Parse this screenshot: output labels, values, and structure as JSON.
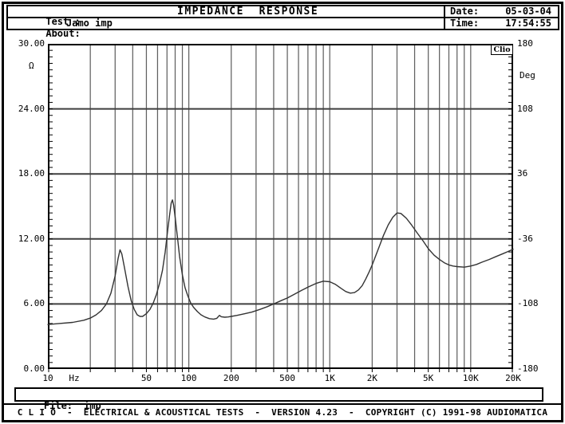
{
  "header": {
    "test_label": "Test :",
    "title": "IMPEDANCE  RESPONSE",
    "about_label": "About:",
    "about_value": "Jamo imp",
    "date_label": "Date:",
    "date_value": "05-03-04",
    "time_label": "Time:",
    "time_value": "17:54:55"
  },
  "file_bar": {
    "label": "File:",
    "value": "imp"
  },
  "footer": {
    "text": "C L I O  -  ELECTRICAL & ACOUSTICAL TESTS  -  VERSION 4.23  -  COPYRIGHT (C) 1991-98 AUDIOMATICA"
  },
  "chart_data": {
    "type": "line",
    "title": "IMPEDANCE RESPONSE",
    "watermark": "Clio",
    "grid": true,
    "colors": {
      "grid_vertical": "#616161",
      "grid_horizontal": "#3f3f3f",
      "axis": "#000000",
      "curve": "#333333",
      "background": "#ffffff"
    },
    "x_axis": {
      "scale": "log",
      "min_hz": 10,
      "max_hz": 20000,
      "unit_label": "Hz",
      "tick_labels": [
        {
          "f": 10,
          "label": "10"
        },
        {
          "f": 50,
          "label": "50"
        },
        {
          "f": 100,
          "label": "100"
        },
        {
          "f": 200,
          "label": "200"
        },
        {
          "f": 500,
          "label": "500"
        },
        {
          "f": 1000,
          "label": "1K"
        },
        {
          "f": 2000,
          "label": "2K"
        },
        {
          "f": 5000,
          "label": "5K"
        },
        {
          "f": 10000,
          "label": "10K"
        },
        {
          "f": 20000,
          "label": "20K"
        }
      ],
      "gridline_freqs": [
        20,
        30,
        40,
        50,
        60,
        70,
        80,
        90,
        100,
        200,
        300,
        400,
        500,
        600,
        700,
        800,
        900,
        1000,
        2000,
        3000,
        4000,
        5000,
        6000,
        7000,
        8000,
        9000,
        10000
      ]
    },
    "y_axis_left": {
      "unit": "Ω",
      "min": 0,
      "max": 30,
      "tick_labels": [
        {
          "v": 30,
          "label": "30.00"
        },
        {
          "v": 24,
          "label": "24.00"
        },
        {
          "v": 18,
          "label": "18.00"
        },
        {
          "v": 12,
          "label": "12.00"
        },
        {
          "v": 6,
          "label": "6.00"
        },
        {
          "v": 0,
          "label": "0.00"
        }
      ],
      "gridline_values": [
        24,
        18,
        12,
        6
      ],
      "minor_tick_step": 0.6
    },
    "y_axis_right": {
      "unit": "Deg",
      "min": -180,
      "max": 180,
      "tick_labels": [
        {
          "v": 180,
          "label": "180"
        },
        {
          "v": 108,
          "label": "108"
        },
        {
          "v": 36,
          "label": "36"
        },
        {
          "v": -36,
          "label": "-36"
        },
        {
          "v": -108,
          "label": "-108"
        },
        {
          "v": -180,
          "label": "-180"
        }
      ],
      "minor_tick_step": 7.2
    },
    "series": [
      {
        "name": "impedance-magnitude",
        "unit": "ohm",
        "points": [
          [
            10,
            4.1
          ],
          [
            12,
            4.2
          ],
          [
            15,
            4.3
          ],
          [
            18,
            4.5
          ],
          [
            20,
            4.7
          ],
          [
            22,
            5.0
          ],
          [
            24,
            5.4
          ],
          [
            26,
            6.0
          ],
          [
            28,
            7.0
          ],
          [
            30,
            8.6
          ],
          [
            31.5,
            10.2
          ],
          [
            32.5,
            11.0
          ],
          [
            33.5,
            10.6
          ],
          [
            35,
            9.3
          ],
          [
            37,
            7.6
          ],
          [
            39,
            6.3
          ],
          [
            41,
            5.5
          ],
          [
            43,
            5.0
          ],
          [
            45,
            4.85
          ],
          [
            47,
            4.85
          ],
          [
            50,
            5.1
          ],
          [
            53,
            5.5
          ],
          [
            56,
            6.1
          ],
          [
            59,
            6.9
          ],
          [
            62,
            7.9
          ],
          [
            65,
            9.1
          ],
          [
            68,
            10.8
          ],
          [
            71,
            12.9
          ],
          [
            73,
            14.2
          ],
          [
            75,
            15.3
          ],
          [
            76.5,
            15.6
          ],
          [
            78,
            15.1
          ],
          [
            80,
            14.0
          ],
          [
            83,
            12.2
          ],
          [
            86,
            10.4
          ],
          [
            90,
            8.7
          ],
          [
            94,
            7.5
          ],
          [
            98,
            6.8
          ],
          [
            103,
            6.1
          ],
          [
            108,
            5.7
          ],
          [
            115,
            5.3
          ],
          [
            122,
            5.0
          ],
          [
            130,
            4.8
          ],
          [
            140,
            4.65
          ],
          [
            150,
            4.6
          ],
          [
            158,
            4.68
          ],
          [
            165,
            4.95
          ],
          [
            170,
            4.82
          ],
          [
            180,
            4.78
          ],
          [
            190,
            4.8
          ],
          [
            200,
            4.85
          ],
          [
            220,
            4.95
          ],
          [
            250,
            5.1
          ],
          [
            280,
            5.25
          ],
          [
            320,
            5.5
          ],
          [
            360,
            5.75
          ],
          [
            400,
            6.0
          ],
          [
            450,
            6.3
          ],
          [
            500,
            6.55
          ],
          [
            560,
            6.9
          ],
          [
            630,
            7.25
          ],
          [
            700,
            7.55
          ],
          [
            800,
            7.9
          ],
          [
            900,
            8.1
          ],
          [
            1000,
            8.05
          ],
          [
            1100,
            7.8
          ],
          [
            1200,
            7.45
          ],
          [
            1300,
            7.15
          ],
          [
            1400,
            7.0
          ],
          [
            1500,
            7.05
          ],
          [
            1600,
            7.3
          ],
          [
            1700,
            7.7
          ],
          [
            1800,
            8.3
          ],
          [
            1900,
            8.95
          ],
          [
            2000,
            9.6
          ],
          [
            2200,
            11.0
          ],
          [
            2400,
            12.3
          ],
          [
            2600,
            13.3
          ],
          [
            2800,
            14.0
          ],
          [
            3000,
            14.4
          ],
          [
            3200,
            14.35
          ],
          [
            3500,
            13.9
          ],
          [
            3800,
            13.3
          ],
          [
            4200,
            12.5
          ],
          [
            4600,
            11.8
          ],
          [
            5000,
            11.1
          ],
          [
            5500,
            10.5
          ],
          [
            6000,
            10.1
          ],
          [
            6500,
            9.8
          ],
          [
            7000,
            9.6
          ],
          [
            7500,
            9.5
          ],
          [
            8000,
            9.45
          ],
          [
            9000,
            9.4
          ],
          [
            10000,
            9.5
          ],
          [
            11000,
            9.65
          ],
          [
            12000,
            9.85
          ],
          [
            13500,
            10.1
          ],
          [
            15000,
            10.35
          ],
          [
            17000,
            10.65
          ],
          [
            18500,
            10.85
          ],
          [
            20000,
            11.05
          ]
        ]
      }
    ]
  }
}
